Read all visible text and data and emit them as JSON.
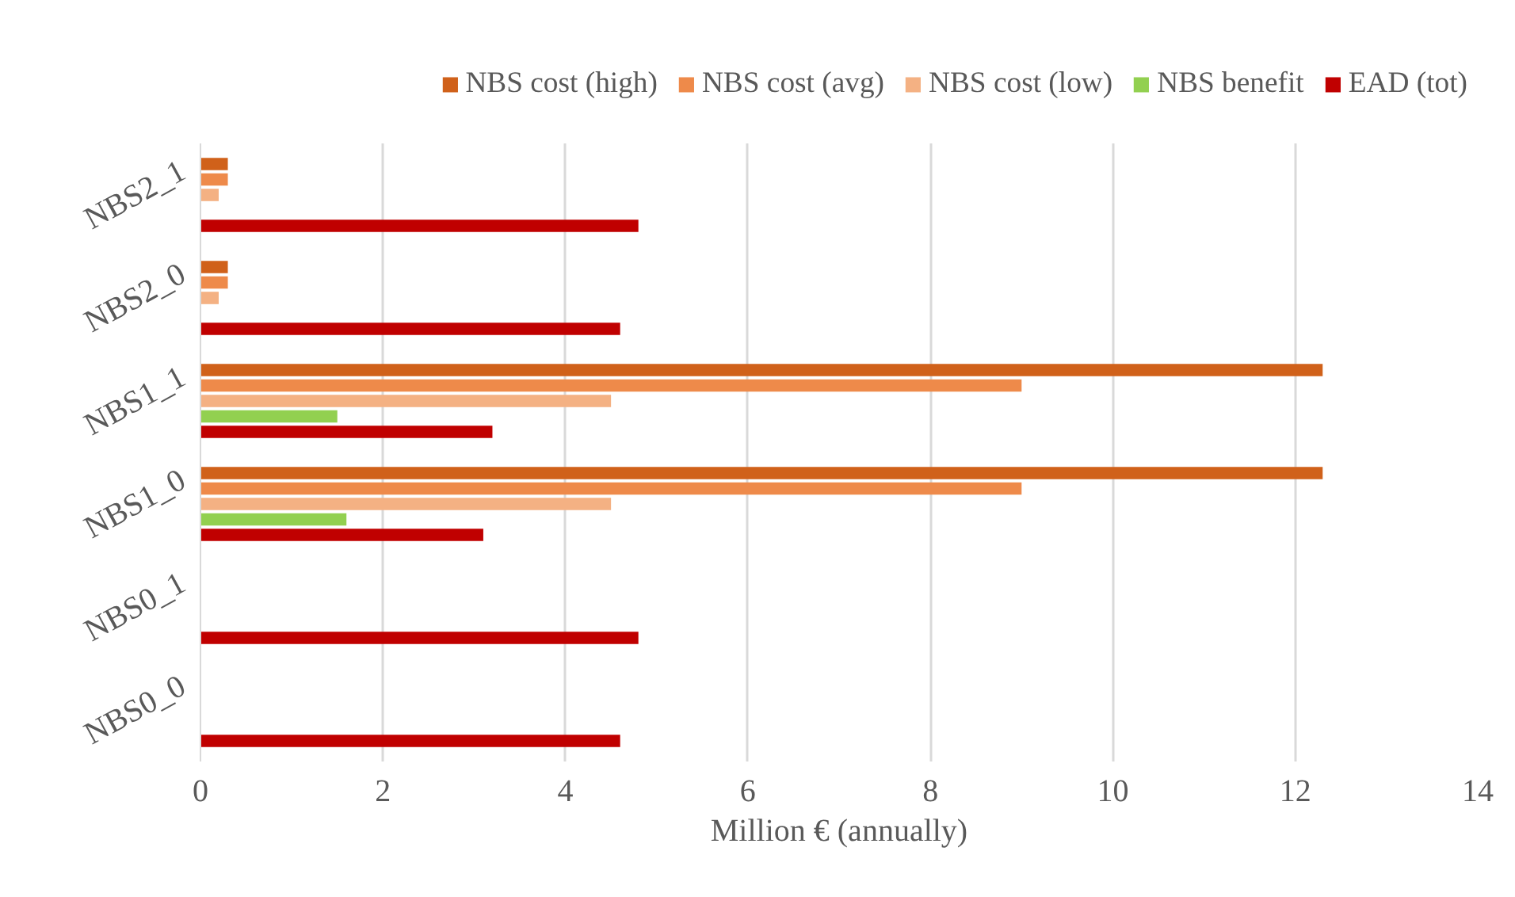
{
  "chart_data": {
    "type": "bar",
    "orientation": "horizontal",
    "xlabel": "Million € (annually)",
    "categories": [
      "NBS2_1",
      "NBS2_0",
      "NBS1_1",
      "NBS1_0",
      "NBS0_1",
      "NBS0_0"
    ],
    "series": [
      {
        "name": "NBS cost (high)",
        "color": "#d0611a",
        "values": [
          0.3,
          0.3,
          12.3,
          12.3,
          null,
          null
        ]
      },
      {
        "name": "NBS cost (avg)",
        "color": "#ee8a4a",
        "values": [
          0.3,
          0.3,
          9.0,
          9.0,
          null,
          null
        ]
      },
      {
        "name": "NBS cost (low)",
        "color": "#f4b183",
        "values": [
          0.2,
          0.2,
          4.5,
          4.5,
          null,
          null
        ]
      },
      {
        "name": "NBS benefit",
        "color": "#92d050",
        "values": [
          null,
          null,
          1.5,
          1.6,
          null,
          null
        ]
      },
      {
        "name": "EAD (tot)",
        "color": "#c00000",
        "values": [
          4.8,
          4.6,
          3.2,
          3.1,
          4.8,
          4.6
        ]
      }
    ],
    "xlim": [
      0,
      14
    ],
    "xticks": [
      0,
      2,
      4,
      6,
      8,
      10,
      12,
      14
    ],
    "grid": "x",
    "legend": "top"
  }
}
